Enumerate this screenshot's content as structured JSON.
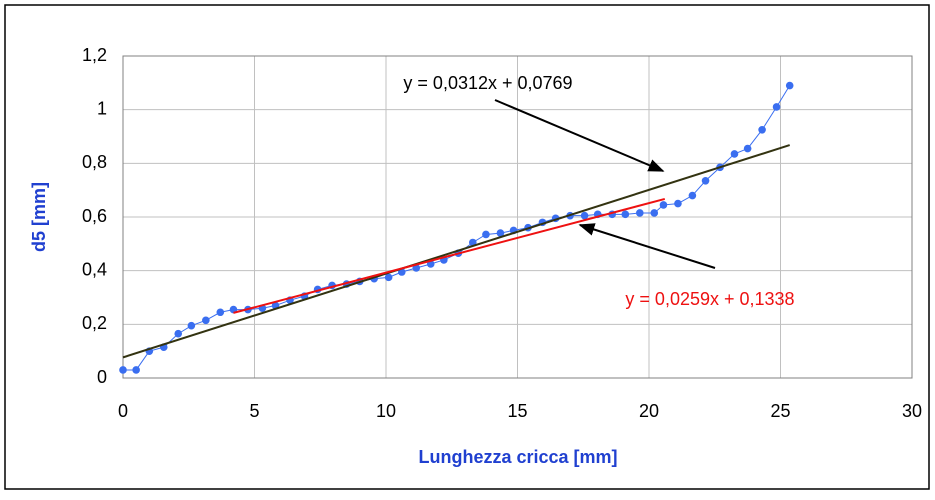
{
  "chart_data": {
    "type": "line",
    "xlabel": "Lunghezza cricca [mm]",
    "ylabel": "d5  [mm]",
    "xlim": [
      0,
      30
    ],
    "xticks": [
      0,
      5,
      10,
      15,
      20,
      25,
      30
    ],
    "ylim": [
      0,
      1.2
    ],
    "yticks": [
      0,
      {
        "value": 0.2,
        "label": "0,2"
      },
      {
        "value": 0.4,
        "label": "0,4"
      },
      {
        "value": 0.6,
        "label": "0,6"
      },
      {
        "value": 0.8,
        "label": "0,8"
      },
      1,
      {
        "value": 1.2,
        "label": "1,2"
      }
    ],
    "grid": true,
    "series": [
      {
        "color": "#3a6ef0",
        "x": [
          0,
          0.5,
          1.0,
          1.55,
          2.1,
          2.6,
          3.15,
          3.7,
          4.2,
          4.75,
          5.3,
          5.8,
          6.35,
          6.9,
          7.4,
          7.95,
          8.5,
          9.0,
          9.55,
          10.1,
          10.6,
          11.15,
          11.7,
          12.2,
          12.75,
          13.3,
          13.8,
          14.35,
          14.85,
          15.4,
          15.95,
          16.45,
          17.0,
          17.55,
          18.05,
          18.6,
          19.1,
          19.65,
          20.2,
          20.55,
          21.1,
          21.65,
          22.15,
          22.7,
          23.25,
          23.75,
          24.3,
          24.85,
          25.35
        ],
        "values": [
          0.03,
          0.03,
          0.1,
          0.115,
          0.165,
          0.195,
          0.215,
          0.245,
          0.255,
          0.255,
          0.26,
          0.27,
          0.29,
          0.305,
          0.33,
          0.345,
          0.35,
          0.36,
          0.37,
          0.375,
          0.395,
          0.41,
          0.425,
          0.44,
          0.465,
          0.505,
          0.535,
          0.54,
          0.55,
          0.56,
          0.58,
          0.595,
          0.605,
          0.605,
          0.61,
          0.61,
          0.61,
          0.615,
          0.615,
          0.645,
          0.65,
          0.68,
          0.735,
          0.785,
          0.835,
          0.855,
          0.925,
          1.01,
          1.09
        ]
      }
    ],
    "trendlines": [
      {
        "label": "y = 0,0312x + 0,0769",
        "color": "#333311",
        "x": [
          0,
          25.35
        ],
        "values": [
          0.0769,
          0.868
        ]
      },
      {
        "label": "y = 0,0259x + 0,1338",
        "color": "#ee1111",
        "x": [
          4.2,
          20.6
        ],
        "values": [
          0.2426,
          0.6673
        ]
      }
    ]
  }
}
